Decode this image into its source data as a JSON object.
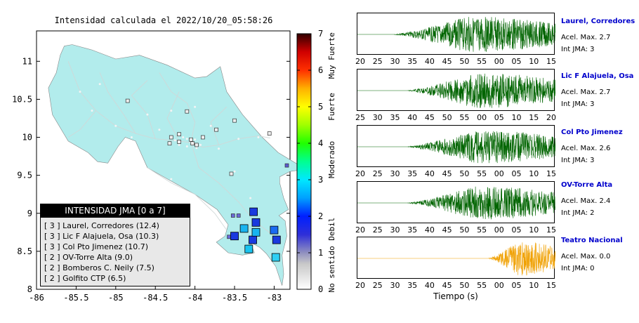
{
  "map": {
    "title": "Intensidad calculada el 2022/10/20_05:58:26",
    "x_ticks": [
      "-86",
      "-85.5",
      "-85",
      "-84.5",
      "-84",
      "-83.5",
      "-83"
    ],
    "y_ticks": [
      "11",
      "10.5",
      "10",
      "9.5",
      "9",
      "8.5",
      "8"
    ],
    "x_range": [
      -86,
      -82.8
    ],
    "y_range": [
      8,
      11.4
    ],
    "land_color": "#b2ecec",
    "colorbar": {
      "ticks": [
        "0",
        "1",
        "2",
        "3",
        "4",
        "5",
        "6",
        "7"
      ],
      "level_labels": [
        "No sentido",
        "Debil",
        "Moderado",
        "Fuerte",
        "Muy Fuerte"
      ]
    },
    "stations": [
      {
        "lon": -83.26,
        "lat": 9.02,
        "intensity": 3,
        "color": "#1a3adf"
      },
      {
        "lon": -83.23,
        "lat": 8.88,
        "intensity": 3,
        "color": "#1a3adf"
      },
      {
        "lon": -83.5,
        "lat": 8.7,
        "intensity": 3,
        "color": "#1a3adf"
      },
      {
        "lon": -83.27,
        "lat": 8.65,
        "intensity": 3,
        "color": "#1a3adf"
      },
      {
        "lon": -82.97,
        "lat": 8.65,
        "intensity": 3,
        "color": "#1a3adf"
      },
      {
        "lon": -83.0,
        "lat": 8.78,
        "intensity": 3,
        "color": "#1a6cf2"
      },
      {
        "lon": -83.23,
        "lat": 8.75,
        "intensity": 2,
        "color": "#19b4f0"
      },
      {
        "lon": -83.38,
        "lat": 8.8,
        "intensity": 2,
        "color": "#19b4f0"
      },
      {
        "lon": -83.32,
        "lat": 8.53,
        "intensity": 2,
        "color": "#19c4f0"
      },
      {
        "lon": -82.98,
        "lat": 8.42,
        "intensity": 2,
        "color": "#2ed0f4"
      }
    ],
    "small_stations": [
      {
        "lon": -84.85,
        "lat": 10.48,
        "color": "#9a7ab8"
      },
      {
        "lon": -84.1,
        "lat": 10.34,
        "color": "#9a7ab8"
      },
      {
        "lon": -84.2,
        "lat": 10.04,
        "color": "#9a7ab8"
      },
      {
        "lon": -83.9,
        "lat": 10.0,
        "color": "#9a7ab8"
      },
      {
        "lon": -84.03,
        "lat": 9.92,
        "color": "#9a7ab8"
      },
      {
        "lon": -84.32,
        "lat": 9.92,
        "color": "#9a7ab8"
      },
      {
        "lon": -83.73,
        "lat": 10.1,
        "color": "#9a7ab8"
      },
      {
        "lon": -83.5,
        "lat": 10.22,
        "color": "#9a7ab8"
      },
      {
        "lon": -83.06,
        "lat": 10.05,
        "color": "#9a7ab8"
      },
      {
        "lon": -82.84,
        "lat": 9.63,
        "color": "#5a5ad0"
      },
      {
        "lon": -83.45,
        "lat": 8.97,
        "color": "#6a6ad8"
      },
      {
        "lon": -83.52,
        "lat": 8.97,
        "color": "#6a6ad8"
      },
      {
        "lon": -83.57,
        "lat": 8.69,
        "color": "#6a6ad8"
      },
      {
        "lon": -83.54,
        "lat": 9.52,
        "color": "#9a7ab8"
      },
      {
        "lon": -84.3,
        "lat": 10.0,
        "color": "#9a7ab8"
      },
      {
        "lon": -84.2,
        "lat": 9.94,
        "color": "#9a7ab8"
      },
      {
        "lon": -84.05,
        "lat": 9.97,
        "color": "#9a7ab8"
      },
      {
        "lon": -83.98,
        "lat": 9.9,
        "color": "#9a7ab8"
      }
    ]
  },
  "legend": {
    "title": "INTENSIDAD JMA [0 a 7]",
    "items": [
      "[ 3 ]  Laurel, Corredores (12.4)",
      "[ 3 ]  Lic F Alajuela, Osa (10.3)",
      "[ 3 ]  Col Pto Jimenez (10.7)",
      "[ 2 ]  OV-Torre Alta (9.0)",
      "[ 2 ]  Bomberos C. Neily (7.5)",
      "[ 2 ]  Golfito CTP (6.5)"
    ]
  },
  "waveforms": [
    {
      "name": "Laurel, Corredores",
      "accel": "Acel. Max. 2.7",
      "int": "Int JMA: 3",
      "color": "#006400",
      "ticks": [
        "20",
        "25",
        "30",
        "35",
        "40",
        "45",
        "50",
        "55",
        "00",
        "05",
        "10",
        "15"
      ],
      "onset": 0.18,
      "amp": 0.9
    },
    {
      "name": "Lic F Alajuela, Osa",
      "accel": "Acel. Max. 2.7",
      "int": "Int JMA: 3",
      "color": "#006400",
      "ticks": [
        "25",
        "30",
        "35",
        "40",
        "45",
        "50",
        "55",
        "00",
        "05",
        "10",
        "15",
        "20"
      ],
      "onset": 0.25,
      "amp": 0.9
    },
    {
      "name": "Col Pto Jimenez",
      "accel": "Acel. Max. 2.6",
      "int": "Int JMA: 3",
      "color": "#006400",
      "ticks": [
        "20",
        "25",
        "30",
        "35",
        "40",
        "45",
        "50",
        "55",
        "00",
        "05",
        "10",
        "15"
      ],
      "onset": 0.25,
      "amp": 0.85
    },
    {
      "name": "OV-Torre Alta",
      "accel": "Acel. Max. 2.4",
      "int": "Int JMA: 2",
      "color": "#006400",
      "ticks": [
        "20",
        "25",
        "30",
        "35",
        "40",
        "45",
        "50",
        "55",
        "00",
        "05",
        "10",
        "15"
      ],
      "onset": 0.25,
      "amp": 0.85
    },
    {
      "name": "Teatro Nacional",
      "accel": "Acel. Max. 0.0",
      "int": "Int JMA: 0",
      "color": "#f0a000",
      "ticks": [
        "20",
        "25",
        "30",
        "35",
        "40",
        "45",
        "50",
        "55",
        "00",
        "05",
        "10",
        "15"
      ],
      "onset": 0.66,
      "amp": 0.9
    }
  ],
  "time_axis_label": "Tiempo (s)"
}
